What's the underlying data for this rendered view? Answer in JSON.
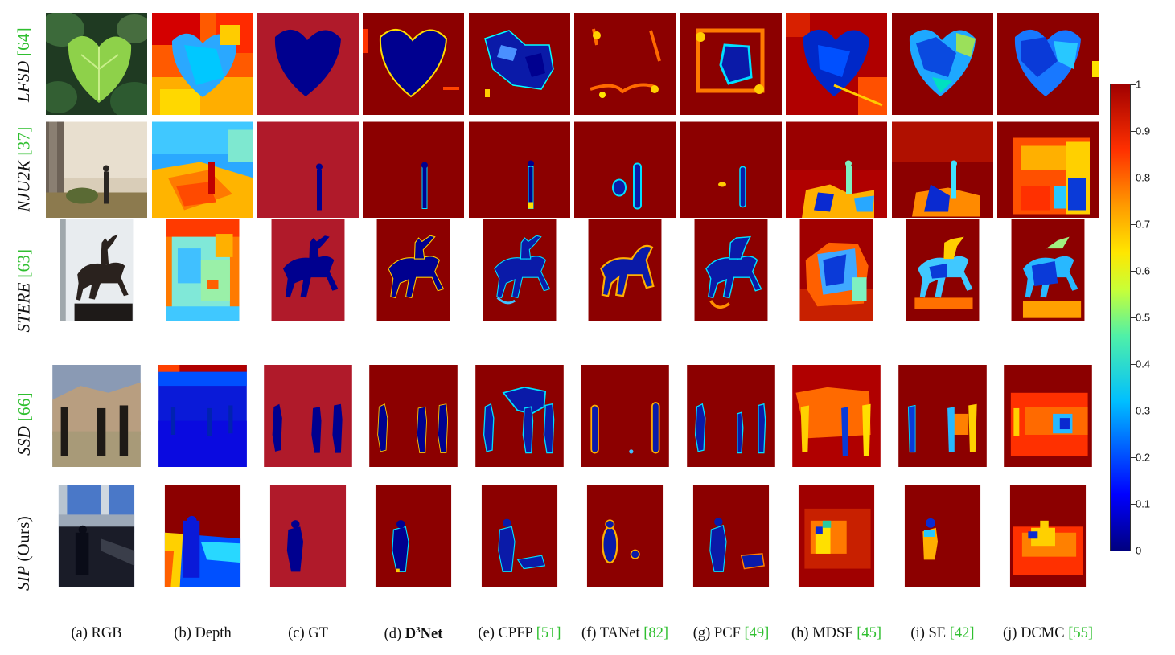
{
  "rows": [
    {
      "name": "LFSD",
      "ref": "[64]"
    },
    {
      "name": "NJU2K",
      "ref": "[37]"
    },
    {
      "name": "STERE",
      "ref": "[63]"
    },
    {
      "name": "SSD",
      "ref": "[66]"
    },
    {
      "name": "SIP",
      "ref": "(Ours)"
    }
  ],
  "columns": [
    {
      "prefix": "(a) RGB",
      "ref": ""
    },
    {
      "prefix": "(b) Depth",
      "ref": ""
    },
    {
      "prefix": "(c) GT",
      "ref": ""
    },
    {
      "prefix": "(d) ",
      "bold": "D",
      "sup": "3",
      "bold2": "Net",
      "ref": ""
    },
    {
      "prefix": "(e) CPFP ",
      "ref": "[51]"
    },
    {
      "prefix": "(f) TANet ",
      "ref": "[82]"
    },
    {
      "prefix": "(g) PCF ",
      "ref": "[49]"
    },
    {
      "prefix": "(h) MDSF ",
      "ref": "[45]"
    },
    {
      "prefix": "(i) SE ",
      "ref": "[42]"
    },
    {
      "prefix": "(j) DCMC ",
      "ref": "[55]"
    }
  ],
  "colorbar": {
    "ticks": [
      "1",
      "0.9",
      "0.8",
      "0.7",
      "0.6",
      "0.5",
      "0.4",
      "0.3",
      "0.2",
      "0.1",
      "0"
    ],
    "colors": {
      "low": "#00007f",
      "mid": "#4ff0a8",
      "high": "#a00000"
    }
  },
  "palette": {
    "gt_red": "#b01a2a",
    "map_red": "#8c0000",
    "dark_blue": "#00008f",
    "ref_green": "#2fbf2f"
  }
}
